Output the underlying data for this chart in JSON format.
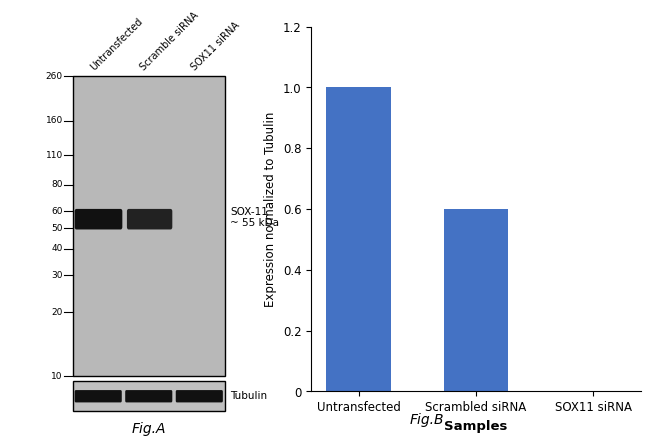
{
  "fig_width": 6.5,
  "fig_height": 4.52,
  "dpi": 100,
  "panel_b": {
    "categories": [
      "Untransfected",
      "Scrambled siRNA",
      "SOX11 siRNA"
    ],
    "values": [
      1.0,
      0.6,
      0.0
    ],
    "bar_color": "#4472C4",
    "bar_width": 0.55,
    "ylim": [
      0,
      1.2
    ],
    "yticks": [
      0,
      0.2,
      0.4,
      0.6,
      0.8,
      1.0,
      1.2
    ],
    "ylabel": "Expression normalized to Tubulin",
    "xlabel": "Samples",
    "xlabel_fontweight": "bold",
    "fig_label": "Fig.B",
    "ylabel_fontsize": 8.5,
    "xlabel_fontsize": 9.5,
    "tick_fontsize": 8.5,
    "fig_label_fontsize": 10
  },
  "panel_a": {
    "mw_markers": [
      260,
      160,
      110,
      80,
      60,
      50,
      40,
      30,
      20,
      10
    ],
    "band_label": "SOX-11\n~ 55 kDa",
    "tubulin_label": "Tubulin",
    "fig_label": "Fig.A",
    "col_labels": [
      "Untransfected",
      "Scramble siRNA",
      "SOX11 siRNA"
    ],
    "gel_facecolor": "#b8b8b8",
    "tub_facecolor": "#c0c0c0",
    "band_color": "#111111",
    "marker_fontsize": 6.5,
    "label_fontsize": 7.5,
    "fig_label_fontsize": 10
  }
}
